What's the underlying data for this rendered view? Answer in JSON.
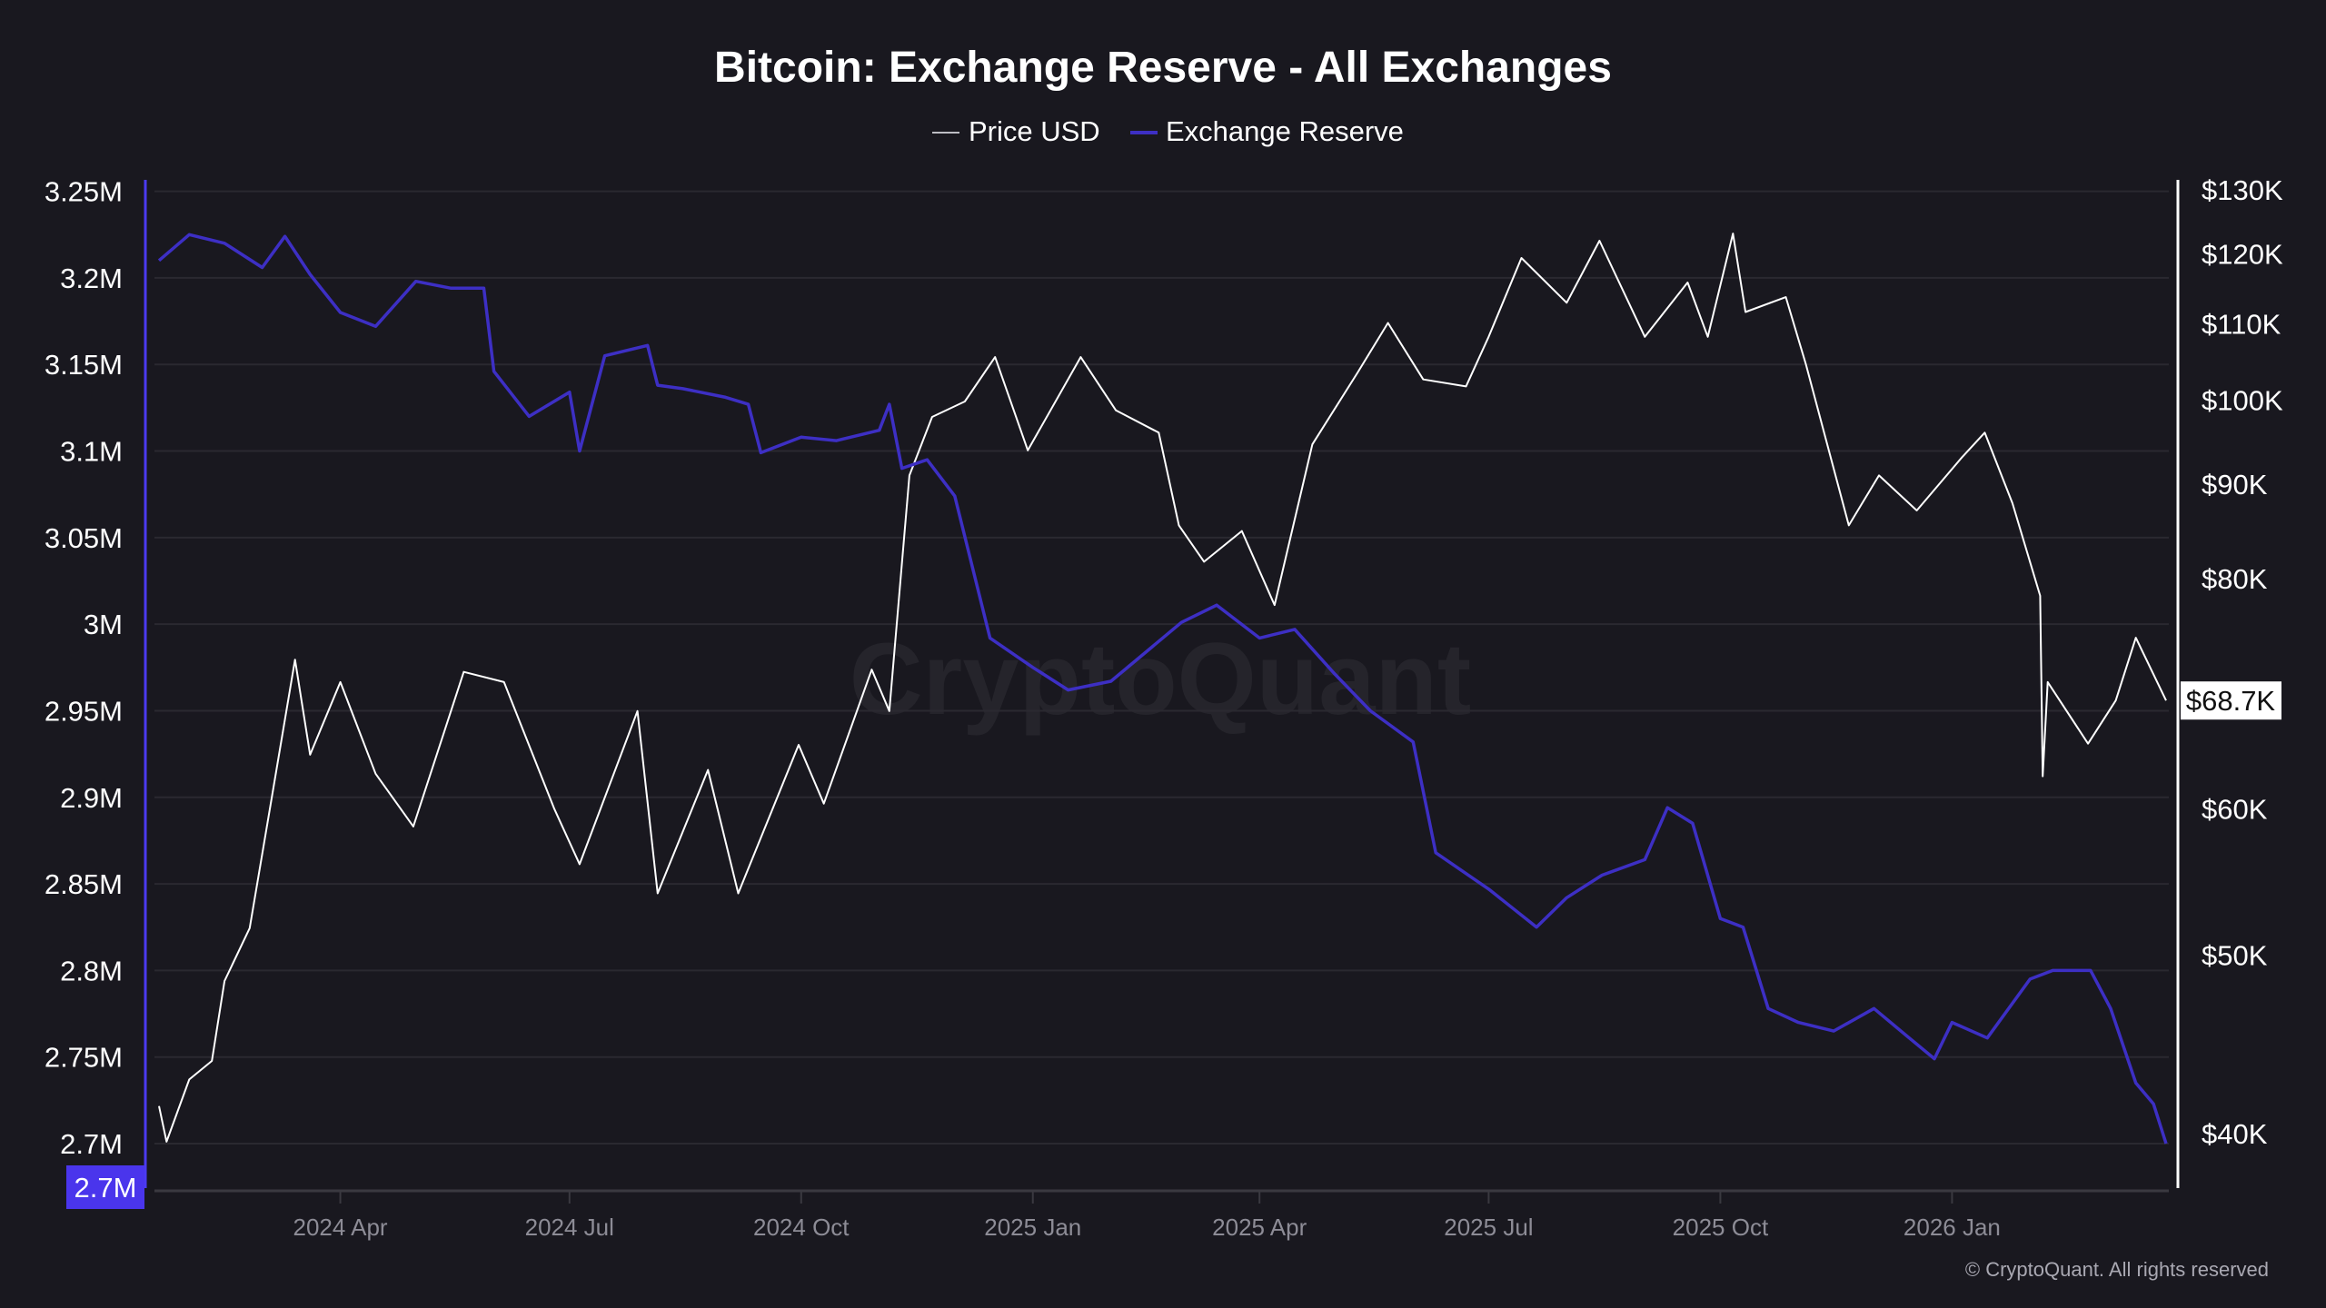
{
  "chart_data": {
    "type": "line",
    "title": "Bitcoin: Exchange Reserve - All Exchanges",
    "watermark": "CryptoQuant",
    "copyright": "© CryptoQuant. All rights reserved",
    "legend": {
      "placement": "top-center",
      "entries": [
        "Price USD",
        "Exchange Reserve"
      ]
    },
    "grid": true,
    "colors": {
      "background": "#19181f",
      "price": "#ffffff",
      "reserve": "#3d2fc4",
      "reserve_axis": "#4b3af0",
      "grid": "#2a2930"
    },
    "x_axis": {
      "type": "date",
      "range": [
        "2024-01-20",
        "2026-03-27"
      ],
      "ticks": [
        {
          "date": "2024-04-01",
          "label": "2024 Apr"
        },
        {
          "date": "2024-07-01",
          "label": "2024 Jul"
        },
        {
          "date": "2024-10-01",
          "label": "2024 Oct"
        },
        {
          "date": "2025-01-01",
          "label": "2025 Jan"
        },
        {
          "date": "2025-04-01",
          "label": "2025 Apr"
        },
        {
          "date": "2025-07-01",
          "label": "2025 Jul"
        },
        {
          "date": "2025-10-01",
          "label": "2025 Oct"
        },
        {
          "date": "2026-01-01",
          "label": "2026 Jan"
        }
      ]
    },
    "y_left": {
      "series": "Exchange Reserve",
      "scale": "linear",
      "range": [
        2.675,
        3.27
      ],
      "ticks": [
        {
          "value": 3.25,
          "label": "3.25M"
        },
        {
          "value": 3.2,
          "label": "3.2M"
        },
        {
          "value": 3.15,
          "label": "3.15M"
        },
        {
          "value": 3.1,
          "label": "3.1M"
        },
        {
          "value": 3.05,
          "label": "3.05M"
        },
        {
          "value": 3.0,
          "label": "3M"
        },
        {
          "value": 2.95,
          "label": "2.95M"
        },
        {
          "value": 2.9,
          "label": "2.9M"
        },
        {
          "value": 2.85,
          "label": "2.85M"
        },
        {
          "value": 2.8,
          "label": "2.8M"
        },
        {
          "value": 2.75,
          "label": "2.75M"
        },
        {
          "value": 2.7,
          "label": "2.7M"
        }
      ],
      "current_label": "2.7M"
    },
    "y_right": {
      "series": "Price USD",
      "scale": "log",
      "range": [
        37.8,
        133
      ],
      "ticks": [
        {
          "value": 130,
          "label": "$130K"
        },
        {
          "value": 120,
          "label": "$120K"
        },
        {
          "value": 110,
          "label": "$110K"
        },
        {
          "value": 100,
          "label": "$100K"
        },
        {
          "value": 90,
          "label": "$90K"
        },
        {
          "value": 80,
          "label": "$80K"
        },
        {
          "value": 60,
          "label": "$60K"
        },
        {
          "value": 50,
          "label": "$50K"
        },
        {
          "value": 40,
          "label": "$40K"
        }
      ],
      "current_label": "$68.7K"
    },
    "series": [
      {
        "name": "Price USD",
        "unit": "K USD",
        "points": [
          [
            "2024-01-20",
            41.4
          ],
          [
            "2024-01-23",
            39.6
          ],
          [
            "2024-02-01",
            42.8
          ],
          [
            "2024-02-10",
            43.8
          ],
          [
            "2024-02-15",
            48.4
          ],
          [
            "2024-02-25",
            51.7
          ],
          [
            "2024-03-05",
            61.1
          ],
          [
            "2024-03-14",
            72.3
          ],
          [
            "2024-03-20",
            64.2
          ],
          [
            "2024-04-01",
            70.3
          ],
          [
            "2024-04-15",
            62.7
          ],
          [
            "2024-04-30",
            58.7
          ],
          [
            "2024-05-20",
            71.2
          ],
          [
            "2024-06-05",
            70.3
          ],
          [
            "2024-06-25",
            60.0
          ],
          [
            "2024-07-05",
            56.0
          ],
          [
            "2024-07-28",
            67.8
          ],
          [
            "2024-08-05",
            54.0
          ],
          [
            "2024-08-25",
            63.0
          ],
          [
            "2024-09-06",
            54.0
          ],
          [
            "2024-09-30",
            65.0
          ],
          [
            "2024-10-10",
            60.4
          ],
          [
            "2024-10-29",
            71.4
          ],
          [
            "2024-11-05",
            67.8
          ],
          [
            "2024-11-13",
            91.0
          ],
          [
            "2024-11-22",
            97.9
          ],
          [
            "2024-12-05",
            99.8
          ],
          [
            "2024-12-17",
            105.5
          ],
          [
            "2024-12-30",
            93.9
          ],
          [
            "2025-01-20",
            105.5
          ],
          [
            "2025-02-03",
            98.7
          ],
          [
            "2025-02-20",
            96.0
          ],
          [
            "2025-02-28",
            85.5
          ],
          [
            "2025-03-10",
            81.7
          ],
          [
            "2025-03-25",
            84.9
          ],
          [
            "2025-04-07",
            77.4
          ],
          [
            "2025-04-22",
            94.6
          ],
          [
            "2025-05-10",
            103.5
          ],
          [
            "2025-05-22",
            110.1
          ],
          [
            "2025-06-05",
            102.6
          ],
          [
            "2025-06-22",
            101.7
          ],
          [
            "2025-07-01",
            108.2
          ],
          [
            "2025-07-14",
            119.4
          ],
          [
            "2025-08-01",
            112.9
          ],
          [
            "2025-08-14",
            122.0
          ],
          [
            "2025-09-01",
            108.2
          ],
          [
            "2025-09-18",
            115.8
          ],
          [
            "2025-09-26",
            108.2
          ],
          [
            "2025-10-06",
            123.1
          ],
          [
            "2025-10-11",
            111.6
          ],
          [
            "2025-10-27",
            113.7
          ],
          [
            "2025-11-04",
            104.5
          ],
          [
            "2025-11-21",
            85.5
          ],
          [
            "2025-12-03",
            91.0
          ],
          [
            "2025-12-18",
            87.1
          ],
          [
            "2026-01-05",
            93.1
          ],
          [
            "2026-01-14",
            96.0
          ],
          [
            "2026-01-25",
            87.9
          ],
          [
            "2026-02-05",
            78.3
          ],
          [
            "2026-02-06",
            62.5
          ],
          [
            "2026-02-08",
            70.3
          ],
          [
            "2026-02-24",
            65.1
          ],
          [
            "2026-03-07",
            68.7
          ],
          [
            "2026-03-15",
            74.3
          ],
          [
            "2026-03-27",
            68.7
          ]
        ]
      },
      {
        "name": "Exchange Reserve",
        "unit": "M BTC",
        "points": [
          [
            "2024-01-20",
            3.21
          ],
          [
            "2024-02-01",
            3.225
          ],
          [
            "2024-02-15",
            3.22
          ],
          [
            "2024-03-01",
            3.206
          ],
          [
            "2024-03-10",
            3.224
          ],
          [
            "2024-03-20",
            3.202
          ],
          [
            "2024-04-01",
            3.18
          ],
          [
            "2024-04-15",
            3.172
          ],
          [
            "2024-05-01",
            3.198
          ],
          [
            "2024-05-15",
            3.194
          ],
          [
            "2024-05-28",
            3.194
          ],
          [
            "2024-06-01",
            3.146
          ],
          [
            "2024-06-15",
            3.12
          ],
          [
            "2024-07-01",
            3.134
          ],
          [
            "2024-07-05",
            3.1
          ],
          [
            "2024-07-15",
            3.155
          ],
          [
            "2024-08-01",
            3.161
          ],
          [
            "2024-08-05",
            3.138
          ],
          [
            "2024-08-15",
            3.136
          ],
          [
            "2024-09-01",
            3.131
          ],
          [
            "2024-09-10",
            3.127
          ],
          [
            "2024-09-15",
            3.099
          ],
          [
            "2024-10-01",
            3.108
          ],
          [
            "2024-10-15",
            3.106
          ],
          [
            "2024-11-01",
            3.112
          ],
          [
            "2024-11-05",
            3.127
          ],
          [
            "2024-11-10",
            3.09
          ],
          [
            "2024-11-20",
            3.095
          ],
          [
            "2024-12-01",
            3.074
          ],
          [
            "2024-12-15",
            2.992
          ],
          [
            "2025-01-01",
            2.975
          ],
          [
            "2025-01-15",
            2.962
          ],
          [
            "2025-02-01",
            2.967
          ],
          [
            "2025-02-15",
            2.984
          ],
          [
            "2025-03-01",
            3.001
          ],
          [
            "2025-03-15",
            3.011
          ],
          [
            "2025-04-01",
            2.992
          ],
          [
            "2025-04-15",
            2.997
          ],
          [
            "2025-05-01",
            2.971
          ],
          [
            "2025-05-15",
            2.95
          ],
          [
            "2025-06-01",
            2.932
          ],
          [
            "2025-06-10",
            2.868
          ],
          [
            "2025-07-01",
            2.847
          ],
          [
            "2025-07-20",
            2.825
          ],
          [
            "2025-08-01",
            2.842
          ],
          [
            "2025-08-15",
            2.855
          ],
          [
            "2025-09-01",
            2.864
          ],
          [
            "2025-09-10",
            2.894
          ],
          [
            "2025-09-20",
            2.885
          ],
          [
            "2025-10-01",
            2.83
          ],
          [
            "2025-10-10",
            2.825
          ],
          [
            "2025-10-20",
            2.778
          ],
          [
            "2025-11-01",
            2.77
          ],
          [
            "2025-11-15",
            2.765
          ],
          [
            "2025-12-01",
            2.778
          ],
          [
            "2025-12-15",
            2.761
          ],
          [
            "2025-12-25",
            2.749
          ],
          [
            "2026-01-01",
            2.77
          ],
          [
            "2026-01-15",
            2.761
          ],
          [
            "2026-02-01",
            2.795
          ],
          [
            "2026-02-10",
            2.8
          ],
          [
            "2026-02-25",
            2.8
          ],
          [
            "2026-03-05",
            2.778
          ],
          [
            "2026-03-15",
            2.735
          ],
          [
            "2026-03-22",
            2.723
          ],
          [
            "2026-03-27",
            2.7
          ]
        ]
      }
    ]
  }
}
